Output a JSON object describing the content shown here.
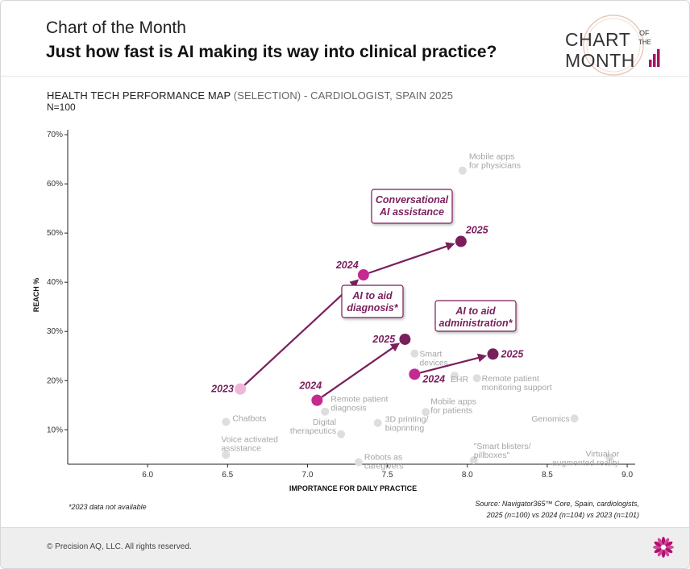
{
  "header": {
    "kicker": "Chart of the Month",
    "title": "Just how fast is AI making its way into clinical practice?",
    "logo_line1": "CHART",
    "logo_of": "OF",
    "logo_the": "THE",
    "logo_line2": "MONTH"
  },
  "map": {
    "title": "HEALTH TECH PERFORMANCE MAP",
    "title_selection": "(SELECTION) - CARDIOLOGIST, SPAIN 2025",
    "n": "N=100"
  },
  "notes": {
    "footnote": "*2023 data not available",
    "source_line1": "Source: Navigator365™ Core, Spain, cardiologists,",
    "source_line2": "2025 (n=100) vs 2024 (n=104) vs 2023 (n=101)"
  },
  "footer": {
    "copyright": "© Precision AQ, LLC. All rights reserved."
  },
  "colors": {
    "dark_purple": "#7a1f5c",
    "magenta": "#c42a8f",
    "light_pink": "#eeb6d8",
    "gray_point": "#dedede",
    "gray_label": "#a6a6a6"
  },
  "chart_data": {
    "type": "scatter",
    "xlabel": "IMPORTANCE FOR DAILY PRACTICE",
    "ylabel": "REACH %",
    "xlim": [
      5.5,
      9.05
    ],
    "ylim": [
      3,
      71
    ],
    "x_ticks": [
      6.0,
      6.5,
      7.0,
      7.5,
      8.0,
      8.5,
      9.0
    ],
    "y_ticks": [
      10,
      20,
      30,
      40,
      50,
      60,
      70
    ],
    "x_tick_labels": [
      "6.0",
      "6.5",
      "7.0",
      "7.5",
      "8.0",
      "8.5",
      "9.0"
    ],
    "y_tick_labels": [
      "10%",
      "20%",
      "30%",
      "40%",
      "50%",
      "60%",
      "70%"
    ],
    "grid": false,
    "background_points": [
      {
        "label": [
          "Mobile apps",
          "for physicians"
        ],
        "x": 7.97,
        "y": 62.7
      },
      {
        "label": [
          "Smart",
          "devices"
        ],
        "x": 7.67,
        "y": 25.5
      },
      {
        "label": [
          "EHR"
        ],
        "x": 7.92,
        "y": 21.0
      },
      {
        "label": [
          "Remote patient",
          "monitoring support"
        ],
        "x": 8.06,
        "y": 20.5
      },
      {
        "label": [
          "Chatbots"
        ],
        "x": 6.49,
        "y": 11.6
      },
      {
        "label": [
          "Remote patient",
          "diagnosis"
        ],
        "x": 7.11,
        "y": 13.7
      },
      {
        "label": [
          "Mobile apps",
          "for patients"
        ],
        "x": 7.74,
        "y": 13.6
      },
      {
        "label": [
          "Genomics"
        ],
        "x": 8.67,
        "y": 12.3
      },
      {
        "label": [
          "3D printing/",
          "bioprinting"
        ],
        "x": 7.44,
        "y": 11.4
      },
      {
        "label": [
          "Digital",
          "therapeutics"
        ],
        "x": 7.21,
        "y": 9.1
      },
      {
        "label": [
          "Voice activated",
          "assistance"
        ],
        "x": 6.49,
        "y": 4.9
      },
      {
        "label": [
          "Robots as",
          "caregivers"
        ],
        "x": 7.32,
        "y": 3.4
      },
      {
        "label": [
          "\"Smart blisters/",
          "pillboxes\""
        ],
        "x": 8.04,
        "y": 3.8
      },
      {
        "label": [
          "Virtual or",
          "augmented reality"
        ],
        "x": 8.89,
        "y": 4.4
      }
    ],
    "series": [
      {
        "name": [
          "Conversational",
          "AI assistance"
        ],
        "points": [
          {
            "year": "2023",
            "x": 6.58,
            "y": 18.3
          },
          {
            "year": "2024",
            "x": 7.35,
            "y": 41.5
          },
          {
            "year": "2025",
            "x": 7.96,
            "y": 48.3
          }
        ]
      },
      {
        "name": [
          "AI to aid",
          "diagnosis*"
        ],
        "points": [
          {
            "year": "2024",
            "x": 7.06,
            "y": 16.0
          },
          {
            "year": "2025",
            "x": 7.61,
            "y": 28.4
          }
        ]
      },
      {
        "name": [
          "AI to aid",
          "administration*"
        ],
        "points": [
          {
            "year": "2024",
            "x": 7.67,
            "y": 21.3
          },
          {
            "year": "2025",
            "x": 8.16,
            "y": 25.4
          }
        ]
      }
    ]
  }
}
